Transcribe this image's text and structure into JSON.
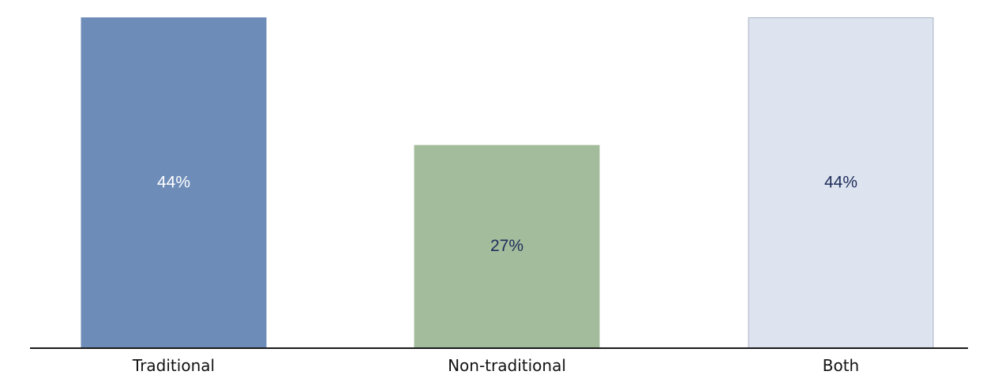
{
  "chart_data": {
    "type": "bar",
    "title": "",
    "xlabel": "",
    "ylabel": "",
    "categories": [
      "Traditional",
      "Non-traditional",
      "Both"
    ],
    "values": [
      44,
      27,
      44
    ],
    "value_labels": [
      "44%",
      "27%",
      "44%"
    ],
    "unit": "%",
    "ylim": [
      0,
      45
    ],
    "grid": false,
    "legend": "none",
    "colors": {
      "bars": [
        "#6d8db8",
        "#a3bc9c",
        "#dde4ef"
      ],
      "bar_borders": [
        "#6d8db8",
        "#a3bc9c",
        "#a9b4c4"
      ],
      "value_label_colors": [
        "#ffffff",
        "#1f2d5a",
        "#1f2d5a"
      ],
      "axis": "#1a1a1a"
    }
  }
}
